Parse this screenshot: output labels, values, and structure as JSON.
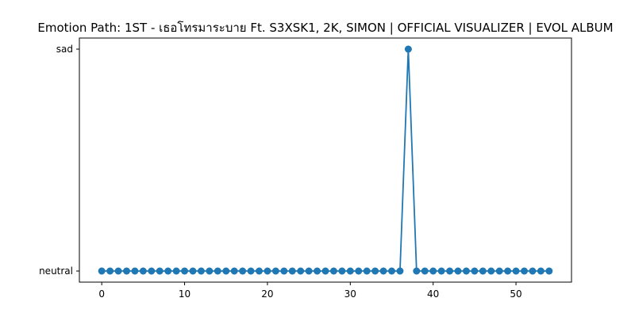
{
  "chart_data": {
    "type": "line",
    "title": "Emotion Path: 1ST - เธอโทรมาระบาย Ft. S3XSK1, 2K, SIMON | OFFICIAL VISUALIZER  | EVOL ALBUM",
    "xlabel": "",
    "ylabel": "",
    "y_categories": [
      "neutral",
      "sad"
    ],
    "xlim": [
      -2.7,
      56.7
    ],
    "xticks": [
      0,
      10,
      20,
      30,
      40,
      50
    ],
    "grid": false,
    "legend": "none",
    "series": [
      {
        "color": "#1f77b4",
        "marker": "circle",
        "x": [
          0,
          1,
          2,
          3,
          4,
          5,
          6,
          7,
          8,
          9,
          10,
          11,
          12,
          13,
          14,
          15,
          16,
          17,
          18,
          19,
          20,
          21,
          22,
          23,
          24,
          25,
          26,
          27,
          28,
          29,
          30,
          31,
          32,
          33,
          34,
          35,
          36,
          37,
          38,
          39,
          40,
          41,
          42,
          43,
          44,
          45,
          46,
          47,
          48,
          49,
          50,
          51,
          52,
          53,
          54
        ],
        "values": [
          "neutral",
          "neutral",
          "neutral",
          "neutral",
          "neutral",
          "neutral",
          "neutral",
          "neutral",
          "neutral",
          "neutral",
          "neutral",
          "neutral",
          "neutral",
          "neutral",
          "neutral",
          "neutral",
          "neutral",
          "neutral",
          "neutral",
          "neutral",
          "neutral",
          "neutral",
          "neutral",
          "neutral",
          "neutral",
          "neutral",
          "neutral",
          "neutral",
          "neutral",
          "neutral",
          "neutral",
          "neutral",
          "neutral",
          "neutral",
          "neutral",
          "neutral",
          "neutral",
          "sad",
          "neutral",
          "neutral",
          "neutral",
          "neutral",
          "neutral",
          "neutral",
          "neutral",
          "neutral",
          "neutral",
          "neutral",
          "neutral",
          "neutral",
          "neutral",
          "neutral",
          "neutral",
          "neutral",
          "neutral"
        ]
      }
    ]
  }
}
